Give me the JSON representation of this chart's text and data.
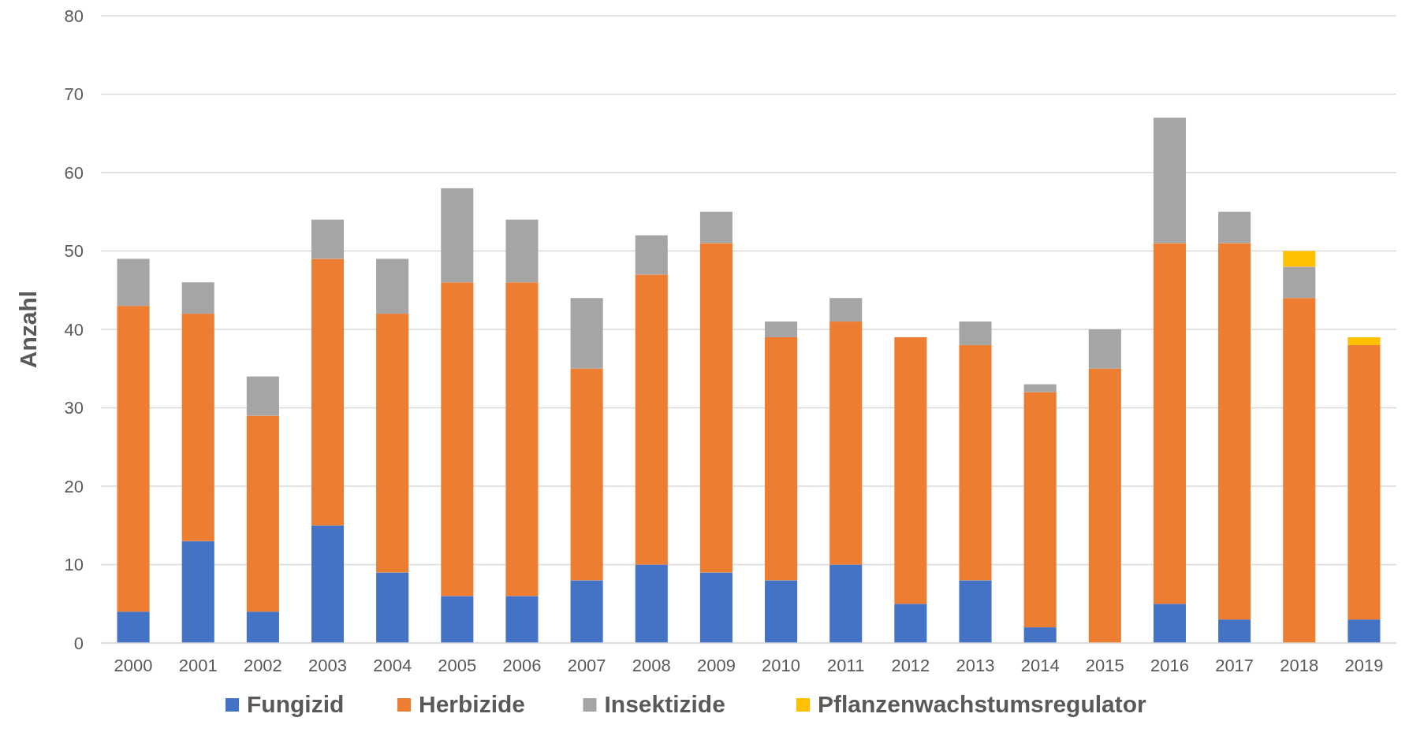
{
  "chart_data": {
    "type": "bar",
    "stacked": true,
    "ylabel": "Anzahl",
    "categories": [
      "2000",
      "2001",
      "2002",
      "2003",
      "2004",
      "2005",
      "2006",
      "2007",
      "2008",
      "2009",
      "2010",
      "2011",
      "2012",
      "2013",
      "2014",
      "2015",
      "2016",
      "2017",
      "2018",
      "2019"
    ],
    "series": [
      {
        "name": "Fungizid",
        "color": "#4472c4",
        "values": [
          4,
          13,
          4,
          15,
          9,
          6,
          6,
          8,
          10,
          9,
          8,
          10,
          5,
          8,
          2,
          0,
          5,
          3,
          0,
          3
        ]
      },
      {
        "name": "Herbizide",
        "color": "#ed7d31",
        "values": [
          39,
          29,
          25,
          34,
          33,
          40,
          40,
          27,
          37,
          42,
          31,
          31,
          34,
          30,
          30,
          35,
          46,
          48,
          44,
          35
        ]
      },
      {
        "name": "Insektizide",
        "color": "#a5a5a5",
        "values": [
          6,
          4,
          5,
          5,
          7,
          12,
          8,
          9,
          5,
          4,
          2,
          3,
          0,
          3,
          1,
          5,
          16,
          4,
          4,
          0
        ]
      },
      {
        "name": "Pflanzenwachstumsregulator",
        "color": "#ffc000",
        "values": [
          0,
          0,
          0,
          0,
          0,
          0,
          0,
          0,
          0,
          0,
          0,
          0,
          0,
          0,
          0,
          0,
          0,
          0,
          2,
          1
        ]
      }
    ],
    "ylim": [
      0,
      80
    ],
    "yticks": [
      0,
      10,
      20,
      30,
      40,
      50,
      60,
      70,
      80
    ],
    "grid": "y",
    "legend": "bottom"
  }
}
